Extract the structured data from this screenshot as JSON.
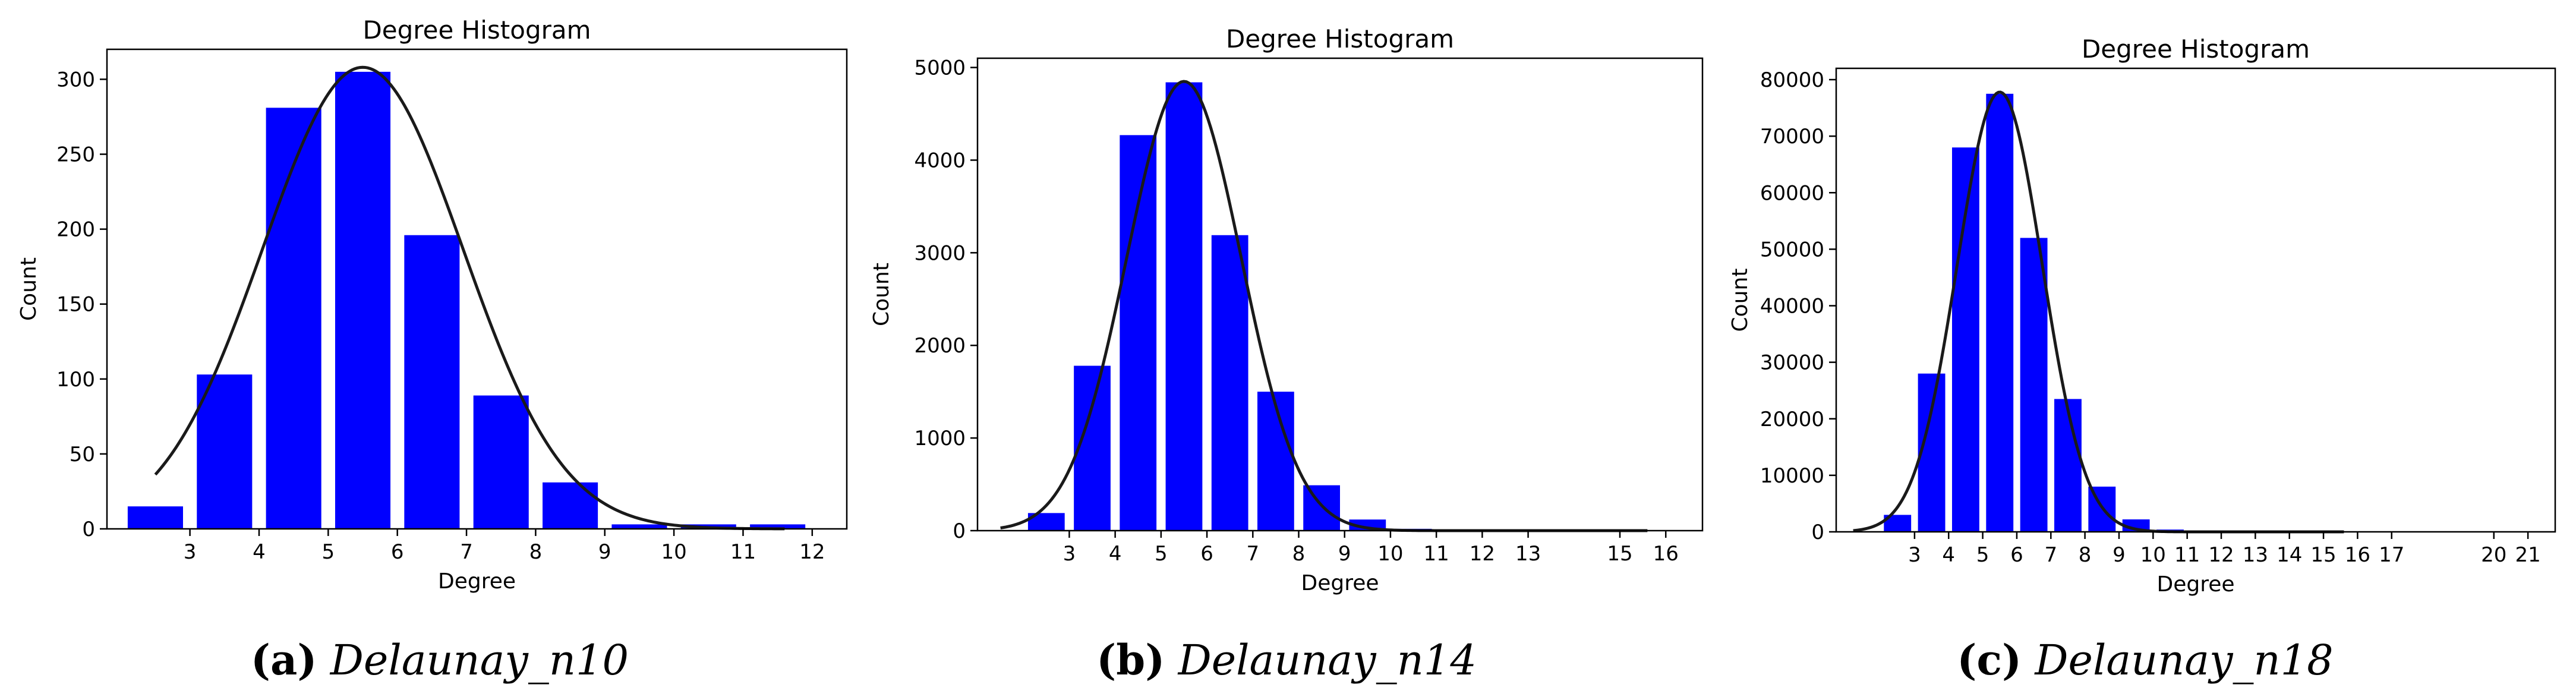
{
  "chart_data": [
    {
      "type": "bar",
      "title": "Degree Histogram",
      "xlabel": "Degree",
      "ylabel": "Count",
      "caption_label": "(a)",
      "caption_name": "Delaunay_n10",
      "bar_color": "#0000ff",
      "curve_color": "#1a1a1a",
      "xlim": [
        1.8,
        12.5
      ],
      "ylim": [
        0,
        320
      ],
      "x_ticks": [
        3,
        4,
        5,
        6,
        7,
        8,
        9,
        10,
        11,
        12
      ],
      "y_ticks": [
        0,
        50,
        100,
        150,
        200,
        250,
        300
      ],
      "bars": [
        {
          "x": 2.5,
          "value": 15
        },
        {
          "x": 3.5,
          "value": 103
        },
        {
          "x": 4.5,
          "value": 281
        },
        {
          "x": 5.5,
          "value": 305
        },
        {
          "x": 6.5,
          "value": 196
        },
        {
          "x": 7.5,
          "value": 89
        },
        {
          "x": 8.5,
          "value": 31
        },
        {
          "x": 9.5,
          "value": 3
        },
        {
          "x": 10.5,
          "value": 3
        },
        {
          "x": 11.5,
          "value": 3
        }
      ],
      "curve": {
        "mean": 5.5,
        "sigma": 1.45,
        "peak": 308,
        "x_from": 2.5,
        "x_to": 11.6
      }
    },
    {
      "type": "bar",
      "title": "Degree Histogram",
      "xlabel": "Degree",
      "ylabel": "Count",
      "caption_label": "(b)",
      "caption_name": "Delaunay_n14",
      "bar_color": "#0000ff",
      "curve_color": "#1a1a1a",
      "xlim": [
        1.0,
        16.8
      ],
      "ylim": [
        0,
        5100
      ],
      "x_ticks": [
        3,
        4,
        5,
        6,
        7,
        8,
        9,
        10,
        11,
        12,
        13,
        15,
        16
      ],
      "y_ticks": [
        0,
        1000,
        2000,
        3000,
        4000,
        5000
      ],
      "bars": [
        {
          "x": 2.5,
          "value": 190
        },
        {
          "x": 3.5,
          "value": 1780
        },
        {
          "x": 4.5,
          "value": 4270
        },
        {
          "x": 5.5,
          "value": 4840
        },
        {
          "x": 6.5,
          "value": 3190
        },
        {
          "x": 7.5,
          "value": 1500
        },
        {
          "x": 8.5,
          "value": 490
        },
        {
          "x": 9.5,
          "value": 120
        },
        {
          "x": 10.5,
          "value": 20
        },
        {
          "x": 11.5,
          "value": 5
        },
        {
          "x": 12.5,
          "value": 2
        }
      ],
      "curve": {
        "mean": 5.5,
        "sigma": 1.25,
        "peak": 4850,
        "x_from": 1.5,
        "x_to": 15.6
      }
    },
    {
      "type": "bar",
      "title": "Degree Histogram",
      "xlabel": "Degree",
      "ylabel": "Count",
      "caption_label": "(c)",
      "caption_name": "Delaunay_n18",
      "bar_color": "#0000ff",
      "curve_color": "#1a1a1a",
      "xlim": [
        0.7,
        21.8
      ],
      "ylim": [
        0,
        82000
      ],
      "x_ticks": [
        3,
        4,
        5,
        6,
        7,
        8,
        9,
        10,
        11,
        12,
        13,
        14,
        15,
        16,
        17,
        20,
        21
      ],
      "y_ticks": [
        0,
        10000,
        20000,
        30000,
        40000,
        50000,
        60000,
        70000,
        80000
      ],
      "bars": [
        {
          "x": 2.5,
          "value": 3000
        },
        {
          "x": 3.5,
          "value": 28000
        },
        {
          "x": 4.5,
          "value": 68000
        },
        {
          "x": 5.5,
          "value": 77500
        },
        {
          "x": 6.5,
          "value": 52000
        },
        {
          "x": 7.5,
          "value": 23500
        },
        {
          "x": 8.5,
          "value": 8000
        },
        {
          "x": 9.5,
          "value": 2200
        },
        {
          "x": 10.5,
          "value": 400
        },
        {
          "x": 11.5,
          "value": 100
        },
        {
          "x": 12.5,
          "value": 30
        }
      ],
      "curve": {
        "mean": 5.5,
        "sigma": 1.25,
        "peak": 77800,
        "x_from": 1.2,
        "x_to": 15.6
      }
    }
  ]
}
